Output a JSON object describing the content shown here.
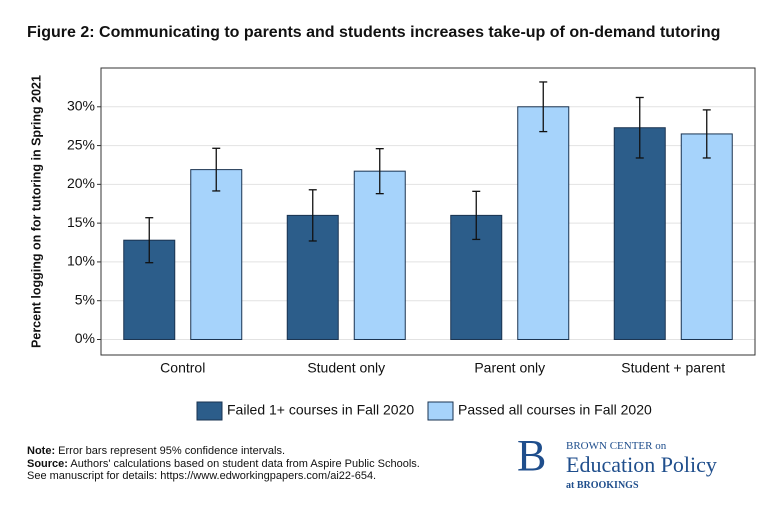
{
  "chart_data": {
    "type": "bar",
    "title": "Figure 2: Communicating to parents and students increases take-up of on-demand tutoring",
    "y_label": "Percent logging on for tutoring in Spring 2021",
    "categories": [
      "Control",
      "Student only",
      "Parent only",
      "Student + parent"
    ],
    "series": [
      {
        "name": "Failed 1+ courses in Fall 2020",
        "color": "#2c5d8a",
        "values": [
          12.8,
          16.0,
          16.0,
          27.3
        ],
        "errors": [
          2.9,
          3.3,
          3.1,
          3.9
        ]
      },
      {
        "name": "Passed all courses in Fall 2020",
        "color": "#a6d3fb",
        "values": [
          21.9,
          21.7,
          30.0,
          26.5
        ],
        "errors": [
          2.75,
          2.9,
          3.2,
          3.1
        ]
      }
    ],
    "ylim": [
      -2,
      35
    ],
    "yticks": [
      {
        "value": 0,
        "label": "0%"
      },
      {
        "value": 5,
        "label": "5%"
      },
      {
        "value": 10,
        "label": "10%"
      },
      {
        "value": 15,
        "label": "15%"
      },
      {
        "value": 20,
        "label": "20%"
      },
      {
        "value": 25,
        "label": "25%"
      },
      {
        "value": 30,
        "label": "30%"
      }
    ],
    "grid": true,
    "legend": "bottom"
  },
  "notes": [
    {
      "label": "Note:",
      "text": " Error bars represent 95% confidence intervals."
    },
    {
      "label": "Source:",
      "text": " Authors' calculations based on student data from Aspire Public Schools."
    },
    {
      "label": "",
      "text": "See manuscript for details: https://www.edworkingpapers.com/ai22-654."
    }
  ],
  "logo": {
    "letter": "B",
    "line1": "BROWN CENTER on",
    "line2": "Education Policy",
    "line3": "at BROOKINGS"
  }
}
